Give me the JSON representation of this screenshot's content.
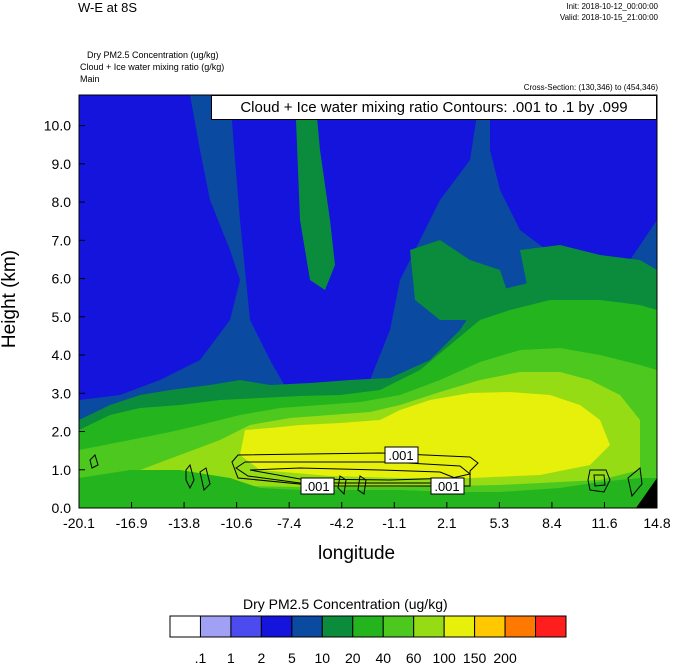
{
  "header": {
    "title": "W-E at 8S",
    "init": "Init: 2018-10-12_00:00:00",
    "valid": "Valid: 2018-10-15_21:00:00",
    "field_line_1": "Dry PM2.5 Concentration   (ug/kg)",
    "field_line_2": "Cloud + Ice water mixing ratio   (g/kg)",
    "field_line_3": "Main",
    "cross_section": "Cross-Section: (130,346) to (454,346)"
  },
  "contour_label": "Cloud + Ice water mixing ratio Contours: .001 to .1 by .099",
  "chart_data": {
    "type": "heatmap",
    "xlabel": "longitude",
    "ylabel": "Height (km)",
    "x_ticks": [
      "-20.1",
      "-16.9",
      "-13.8",
      "-10.6",
      "-7.4",
      "-4.2",
      "-1.1",
      "2.1",
      "5.3",
      "8.4",
      "11.6",
      "14.8"
    ],
    "y_ticks": [
      "0.0",
      "1.0",
      "2.0",
      "3.0",
      "4.0",
      "5.0",
      "6.0",
      "7.0",
      "8.0",
      "9.0",
      "10.0"
    ],
    "xlim": [
      -20.1,
      14.8
    ],
    "ylim": [
      0,
      10.8
    ],
    "colorbar": {
      "title": "Dry PM2.5 Concentration  (ug/kg)",
      "levels": [
        ".1",
        "1",
        "2",
        "5",
        "10",
        "20",
        "40",
        "60",
        "100",
        "150",
        "200"
      ],
      "colors": [
        "#ffffff",
        "#a0a0f5",
        "#4b4bf0",
        "#1414dc",
        "#0a4aa0",
        "#0a8c3c",
        "#23b41e",
        "#4cc81e",
        "#96dc14",
        "#e6f00a",
        "#ffc800",
        "#ff7800",
        "#ff1e1e"
      ]
    },
    "contour_labels": [
      ".001",
      ".001",
      ".001"
    ],
    "fields": [
      {
        "name": "Dry PM2.5 Concentration",
        "units": "ug/kg"
      },
      {
        "name": "Cloud + Ice water mixing ratio",
        "units": "g/kg"
      }
    ]
  }
}
